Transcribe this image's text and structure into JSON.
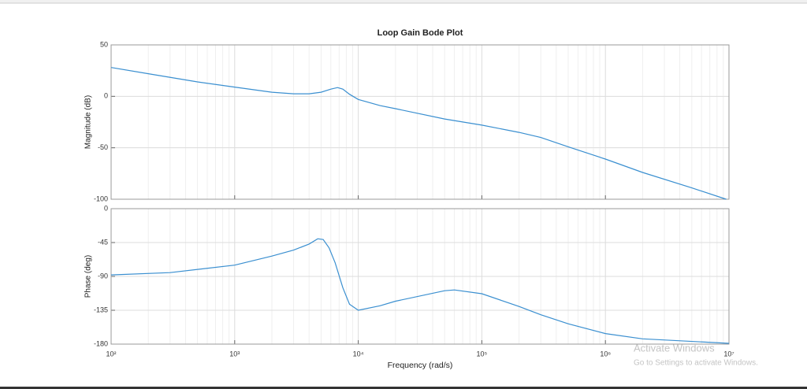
{
  "chart_data": [
    {
      "type": "line",
      "title": "Loop Gain Bode Plot",
      "ylabel": "Magnitude (dB)",
      "xscale": "log",
      "x": [
        100,
        200,
        500,
        1000,
        2000,
        3000,
        4000,
        5000,
        6000,
        6800,
        7500,
        8500,
        10000,
        15000,
        20000,
        50000,
        100000,
        200000,
        300000,
        500000,
        1000000,
        2000000,
        5000000,
        9500000
      ],
      "values": [
        28,
        22,
        14,
        9,
        4,
        2.5,
        2.5,
        4,
        7,
        8.5,
        7,
        2,
        -3,
        -9,
        -12,
        -22,
        -28,
        -35,
        -40,
        -49,
        -61,
        -74,
        -89,
        -100
      ],
      "color": "#3a8fd0",
      "xlim": [
        100,
        10000000
      ],
      "xticks": [
        100,
        1000,
        10000,
        100000,
        1000000,
        10000000
      ],
      "ylim": [
        -100,
        50
      ],
      "yticks": [
        50,
        0,
        -50,
        -100
      ],
      "grid": true,
      "minor_grid": true
    },
    {
      "type": "line",
      "ylabel": "Phase (deg)",
      "xlabel": "Frequency  (rad/s)",
      "xscale": "log",
      "x": [
        100,
        300,
        1000,
        2000,
        3000,
        4000,
        4700,
        5200,
        5800,
        6500,
        7500,
        8500,
        10000,
        15000,
        20000,
        50000,
        60000,
        100000,
        200000,
        300000,
        500000,
        1000000,
        2000000,
        10000000
      ],
      "values": [
        -88,
        -85,
        -75,
        -63,
        -55,
        -47,
        -40,
        -41,
        -52,
        -72,
        -105,
        -127,
        -135,
        -129,
        -123,
        -109,
        -108,
        -113,
        -130,
        -141,
        -153,
        -166,
        -173,
        -179
      ],
      "color": "#3a8fd0",
      "xlim": [
        100,
        10000000
      ],
      "xticks": [
        {
          "value": 100,
          "label": "10²"
        },
        {
          "value": 1000,
          "label": "10³"
        },
        {
          "value": 10000,
          "label": "10⁴"
        },
        {
          "value": 100000,
          "label": "10⁵"
        },
        {
          "value": 1000000,
          "label": "10⁶"
        },
        {
          "value": 10000000,
          "label": "10⁷"
        }
      ],
      "ylim": [
        -180,
        0
      ],
      "yticks": [
        0,
        -45,
        -90,
        -135,
        -180
      ],
      "grid": true,
      "minor_grid": true
    }
  ],
  "watermark": {
    "title": "Activate Windows",
    "subtitle": "Go to Settings to activate Windows."
  }
}
